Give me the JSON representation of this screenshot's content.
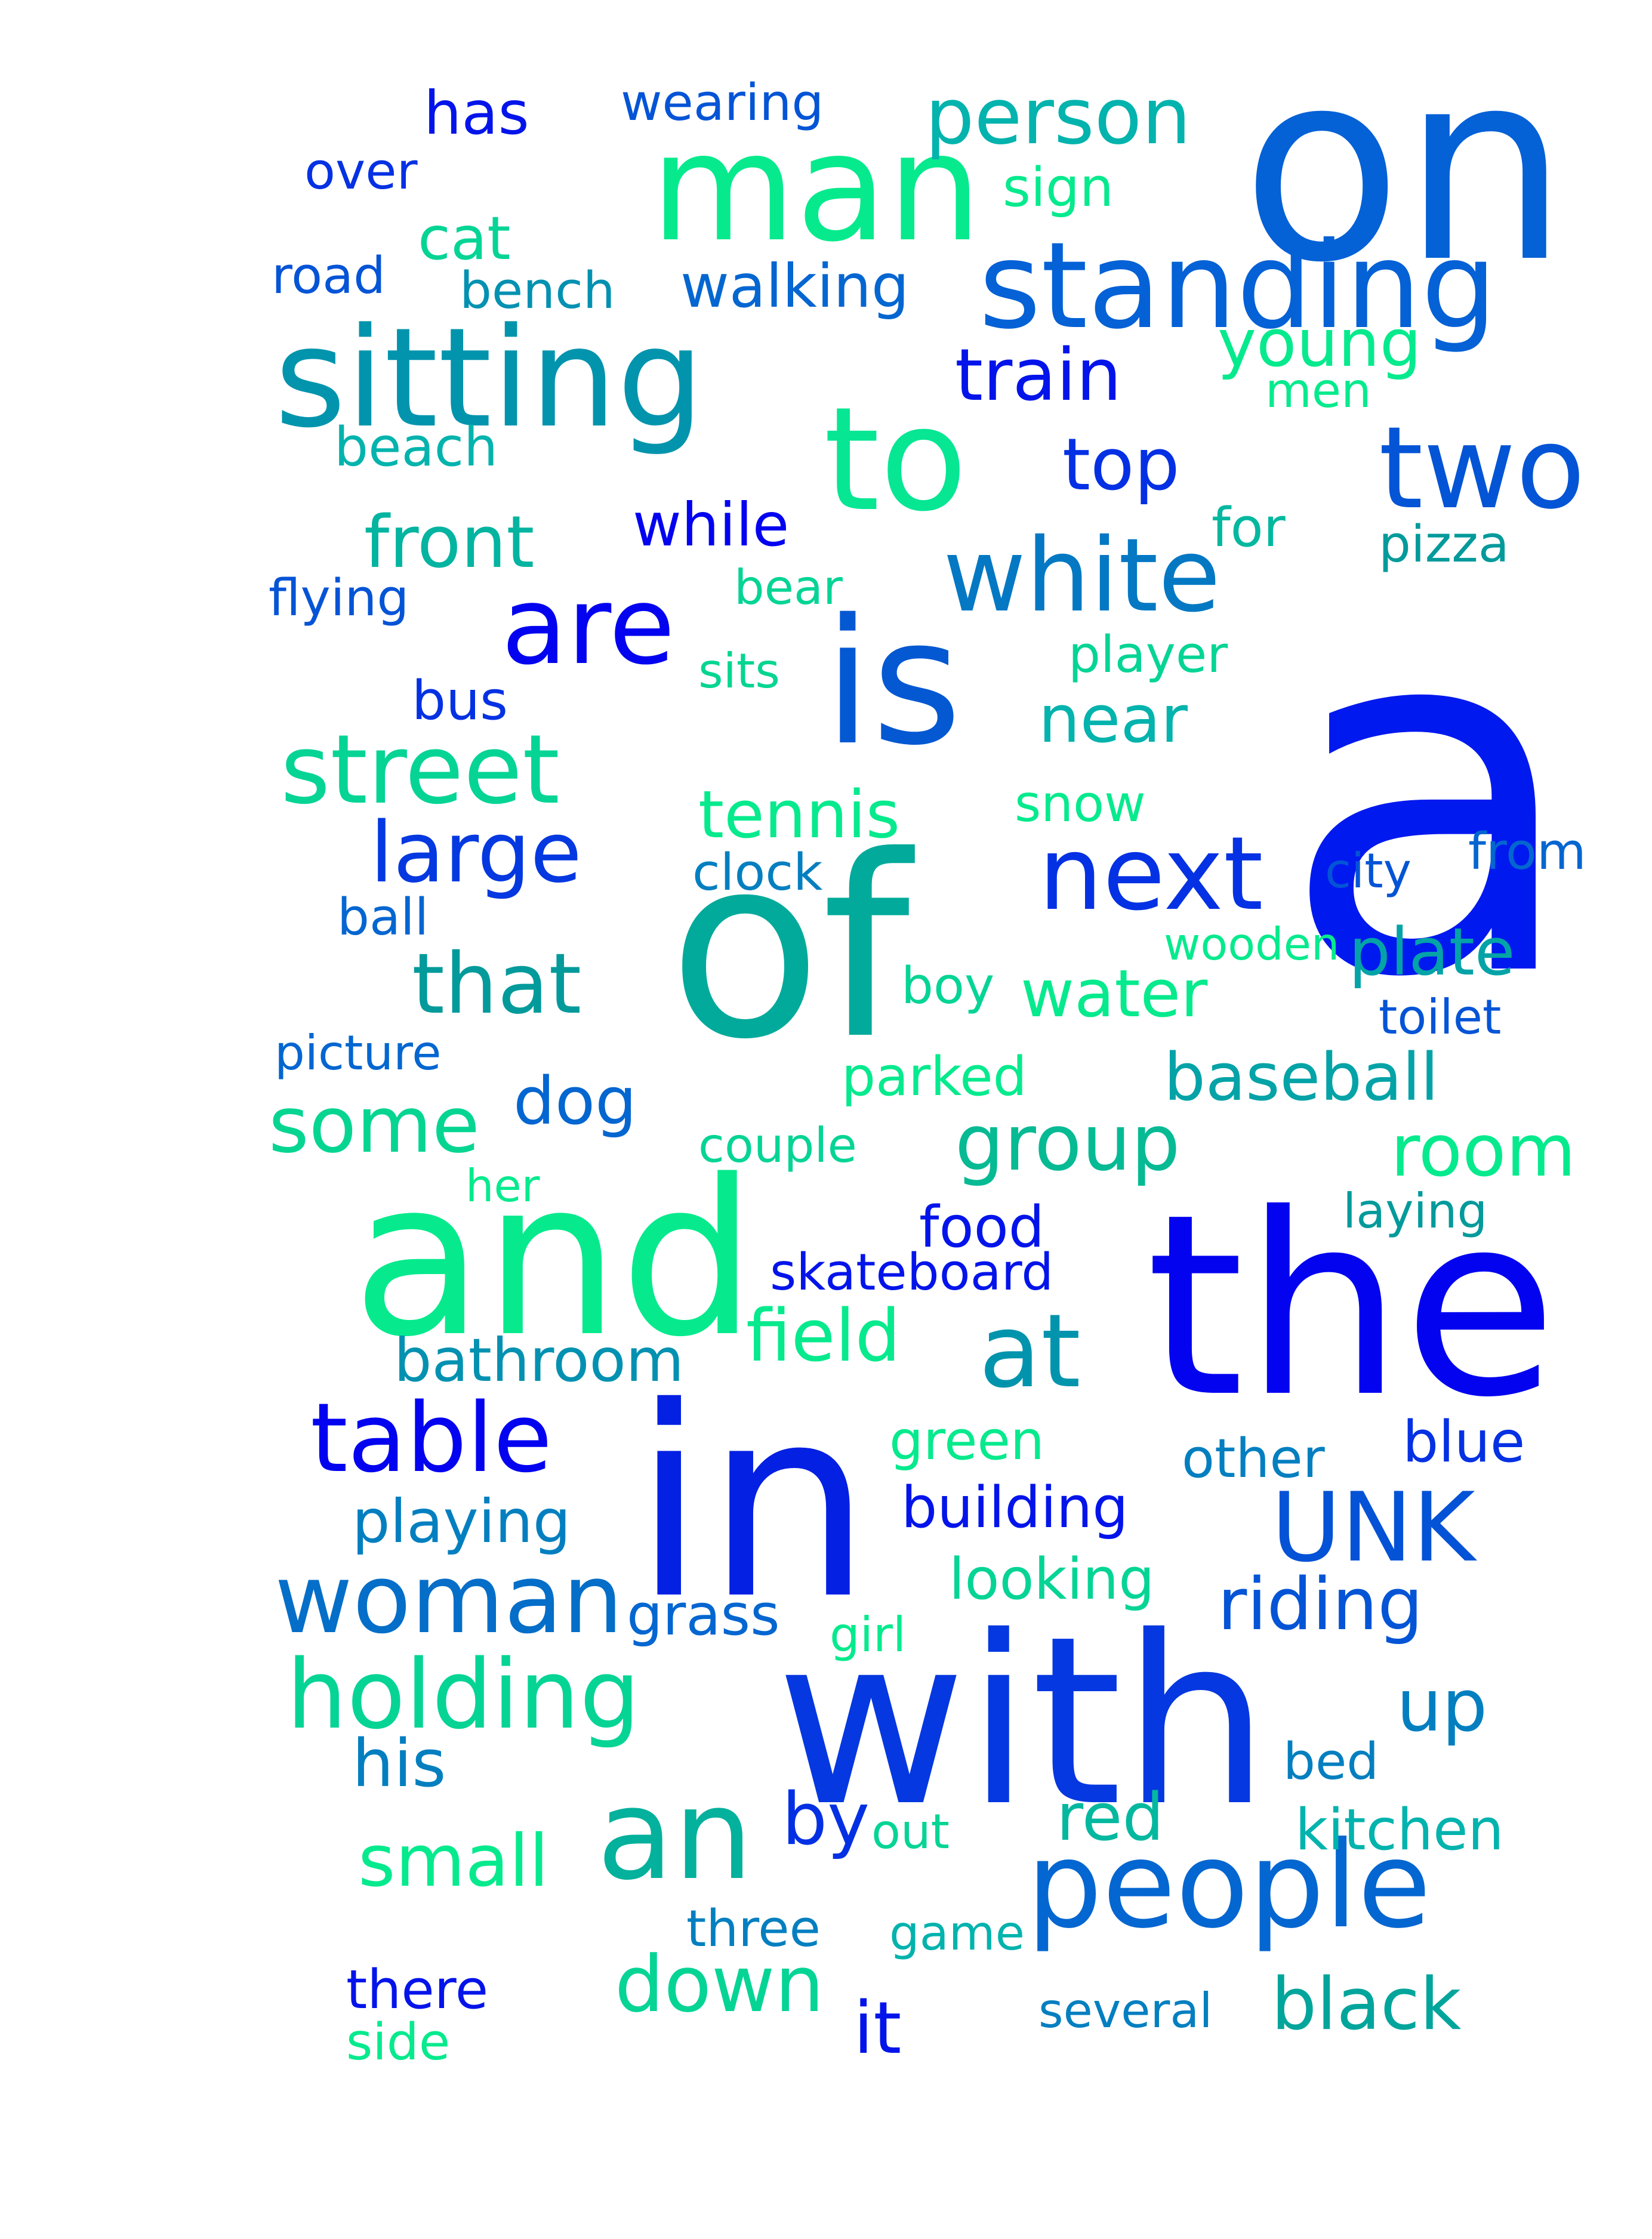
{
  "words": [
    {
      "text": "a",
      "color": "#0019ef"
    },
    {
      "text": "on",
      "color": "#0461d6"
    },
    {
      "text": "the",
      "color": "#0303f0"
    },
    {
      "text": "in",
      "color": "#0420e3"
    },
    {
      "text": "of",
      "color": "#02aa9b"
    },
    {
      "text": "with",
      "color": "#0538e0"
    },
    {
      "text": "and",
      "color": "#06ea8d"
    },
    {
      "text": "is",
      "color": "#0458d2"
    },
    {
      "text": "man",
      "color": "#06ea8d"
    },
    {
      "text": "sitting",
      "color": "#0294ad"
    },
    {
      "text": "standing",
      "color": "#0461d6"
    },
    {
      "text": "to",
      "color": "#06e693"
    },
    {
      "text": "two",
      "color": "#0454d6"
    },
    {
      "text": "people",
      "color": "#0466d0"
    },
    {
      "text": "an",
      "color": "#03b19c"
    },
    {
      "text": "are",
      "color": "#0303f0"
    },
    {
      "text": "white",
      "color": "#0478c3"
    },
    {
      "text": "next",
      "color": "#0431e3"
    },
    {
      "text": "woman",
      "color": "#046ec8"
    },
    {
      "text": "table",
      "color": "#0303f0"
    },
    {
      "text": "at",
      "color": "#0294ad"
    },
    {
      "text": "UNK",
      "color": "#0452d6"
    },
    {
      "text": "street",
      "color": "#05d495"
    },
    {
      "text": "holding",
      "color": "#05d495"
    },
    {
      "text": "person",
      "color": "#03b3ad"
    },
    {
      "text": "large",
      "color": "#0438e0"
    },
    {
      "text": "that",
      "color": "#039a9b"
    },
    {
      "text": "group",
      "color": "#06ba94"
    },
    {
      "text": "down",
      "color": "#05d495"
    },
    {
      "text": "black",
      "color": "#02a59b"
    },
    {
      "text": "train",
      "color": "#0314ea"
    },
    {
      "text": "top",
      "color": "#0430e4"
    },
    {
      "text": "front",
      "color": "#03b4a0"
    },
    {
      "text": "some",
      "color": "#06d591"
    },
    {
      "text": "room",
      "color": "#06ea8d"
    },
    {
      "text": "riding",
      "color": "#0454d6"
    },
    {
      "text": "red",
      "color": "#04b89f"
    },
    {
      "text": "small",
      "color": "#06ea8d"
    },
    {
      "text": "it",
      "color": "#0314ea"
    },
    {
      "text": "up",
      "color": "#037fc0"
    },
    {
      "text": "by",
      "color": "#0430e4"
    },
    {
      "text": "his",
      "color": "#037fc0"
    },
    {
      "text": "young",
      "color": "#06ea8d"
    },
    {
      "text": "near",
      "color": "#03b3ad"
    },
    {
      "text": "plate",
      "color": "#03a3a7"
    },
    {
      "text": "dog",
      "color": "#0466d0"
    },
    {
      "text": "field",
      "color": "#06ea8d"
    },
    {
      "text": "tennis",
      "color": "#06ea8d"
    },
    {
      "text": "baseball",
      "color": "#03a3a7"
    },
    {
      "text": "water",
      "color": "#06ea8d"
    },
    {
      "text": "walking",
      "color": "#0466d0"
    },
    {
      "text": "cat",
      "color": "#05d495"
    },
    {
      "text": "has",
      "color": "#0314ea"
    },
    {
      "text": "while",
      "color": "#0303f0"
    },
    {
      "text": "playing",
      "color": "#037fc0"
    },
    {
      "text": "bathroom",
      "color": "#0391b1"
    },
    {
      "text": "building",
      "color": "#0314ea"
    },
    {
      "text": "kitchen",
      "color": "#03b3ad"
    },
    {
      "text": "grass",
      "color": "#0466d0"
    },
    {
      "text": "looking",
      "color": "#05d495"
    },
    {
      "text": "food",
      "color": "#0314ea"
    },
    {
      "text": "skateboard",
      "color": "#0314ea"
    },
    {
      "text": "blue",
      "color": "#0431e3"
    },
    {
      "text": "there",
      "color": "#0314ea"
    },
    {
      "text": "green",
      "color": "#06ea8d"
    },
    {
      "text": "other",
      "color": "#037fc0"
    },
    {
      "text": "bus",
      "color": "#0431e3"
    },
    {
      "text": "sign",
      "color": "#06ea8d"
    },
    {
      "text": "wearing",
      "color": "#0454d6"
    },
    {
      "text": "over",
      "color": "#0431e3"
    },
    {
      "text": "road",
      "color": "#0454d6"
    },
    {
      "text": "bench",
      "color": "#0391b1"
    },
    {
      "text": "beach",
      "color": "#03b3ad"
    },
    {
      "text": "flying",
      "color": "#0454d6"
    },
    {
      "text": "bear",
      "color": "#05d495"
    },
    {
      "text": "sits",
      "color": "#06d591"
    },
    {
      "text": "player",
      "color": "#05d495"
    },
    {
      "text": "for",
      "color": "#04b89f"
    },
    {
      "text": "pizza",
      "color": "#039a9b"
    },
    {
      "text": "men",
      "color": "#06ea8d"
    },
    {
      "text": "snow",
      "color": "#06ea8d"
    },
    {
      "text": "clock",
      "color": "#037fc0"
    },
    {
      "text": "city",
      "color": "#0454d6"
    },
    {
      "text": "from",
      "color": "#0466d0"
    },
    {
      "text": "ball",
      "color": "#0466d0"
    },
    {
      "text": "wooden",
      "color": "#06ea8d"
    },
    {
      "text": "boy",
      "color": "#05d495"
    },
    {
      "text": "toilet",
      "color": "#0454d6"
    },
    {
      "text": "picture",
      "color": "#0466d0"
    },
    {
      "text": "parked",
      "color": "#06ea8d"
    },
    {
      "text": "couple",
      "color": "#05d495"
    },
    {
      "text": "her",
      "color": "#06ea8d"
    },
    {
      "text": "laying",
      "color": "#039a9b"
    },
    {
      "text": "girl",
      "color": "#06ea8d"
    },
    {
      "text": "bed",
      "color": "#037fc0"
    },
    {
      "text": "out",
      "color": "#05d495"
    },
    {
      "text": "three",
      "color": "#037fc0"
    },
    {
      "text": "game",
      "color": "#03b3ad"
    },
    {
      "text": "several",
      "color": "#037fc0"
    },
    {
      "text": "side",
      "color": "#06ea8d"
    }
  ]
}
